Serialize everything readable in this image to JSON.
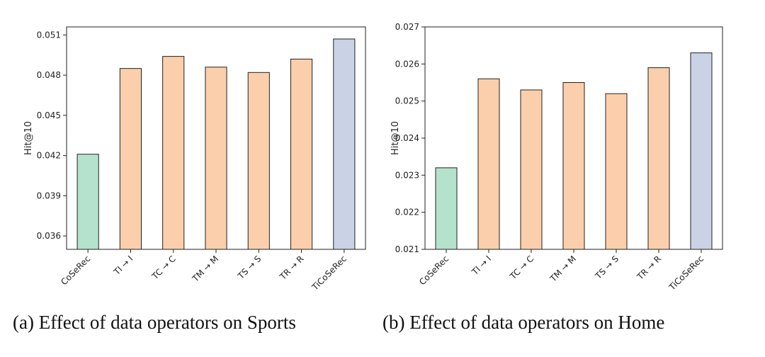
{
  "colors": {
    "baseline": "#b5e2cc",
    "variant": "#fbcfac",
    "full": "#c9d3e5",
    "edge": "#222222"
  },
  "chart_data": [
    {
      "type": "bar",
      "caption": "(a) Effect of data operators on Sports",
      "ylabel": "Hit@10",
      "ylim": [
        0.035,
        0.0516
      ],
      "yticks": [
        "0.036",
        "0.039",
        "0.042",
        "0.045",
        "0.048",
        "0.051"
      ],
      "categories": [
        "CoSeRec",
        "TI → I",
        "TC → C",
        "TM → M",
        "TS → S",
        "TR → R",
        "TiCoSeRec"
      ],
      "values": [
        0.0421,
        0.0485,
        0.0494,
        0.0486,
        0.0482,
        0.0492,
        0.0507
      ],
      "groups": [
        "baseline",
        "variant",
        "variant",
        "variant",
        "variant",
        "variant",
        "full"
      ]
    },
    {
      "type": "bar",
      "caption": "(b) Effect of data operators on Home",
      "ylabel": "Hit@10",
      "ylim": [
        0.021,
        0.027
      ],
      "yticks": [
        "0.021",
        "0.022",
        "0.023",
        "0.024",
        "0.025",
        "0.026",
        "0.027"
      ],
      "categories": [
        "CoSeRec",
        "TI → I",
        "TC → C",
        "TM → M",
        "TS → S",
        "TR → R",
        "TiCoSeRec"
      ],
      "values": [
        0.0232,
        0.0256,
        0.0253,
        0.0255,
        0.0252,
        0.0259,
        0.0263
      ],
      "groups": [
        "baseline",
        "variant",
        "variant",
        "variant",
        "variant",
        "variant",
        "full"
      ]
    }
  ]
}
